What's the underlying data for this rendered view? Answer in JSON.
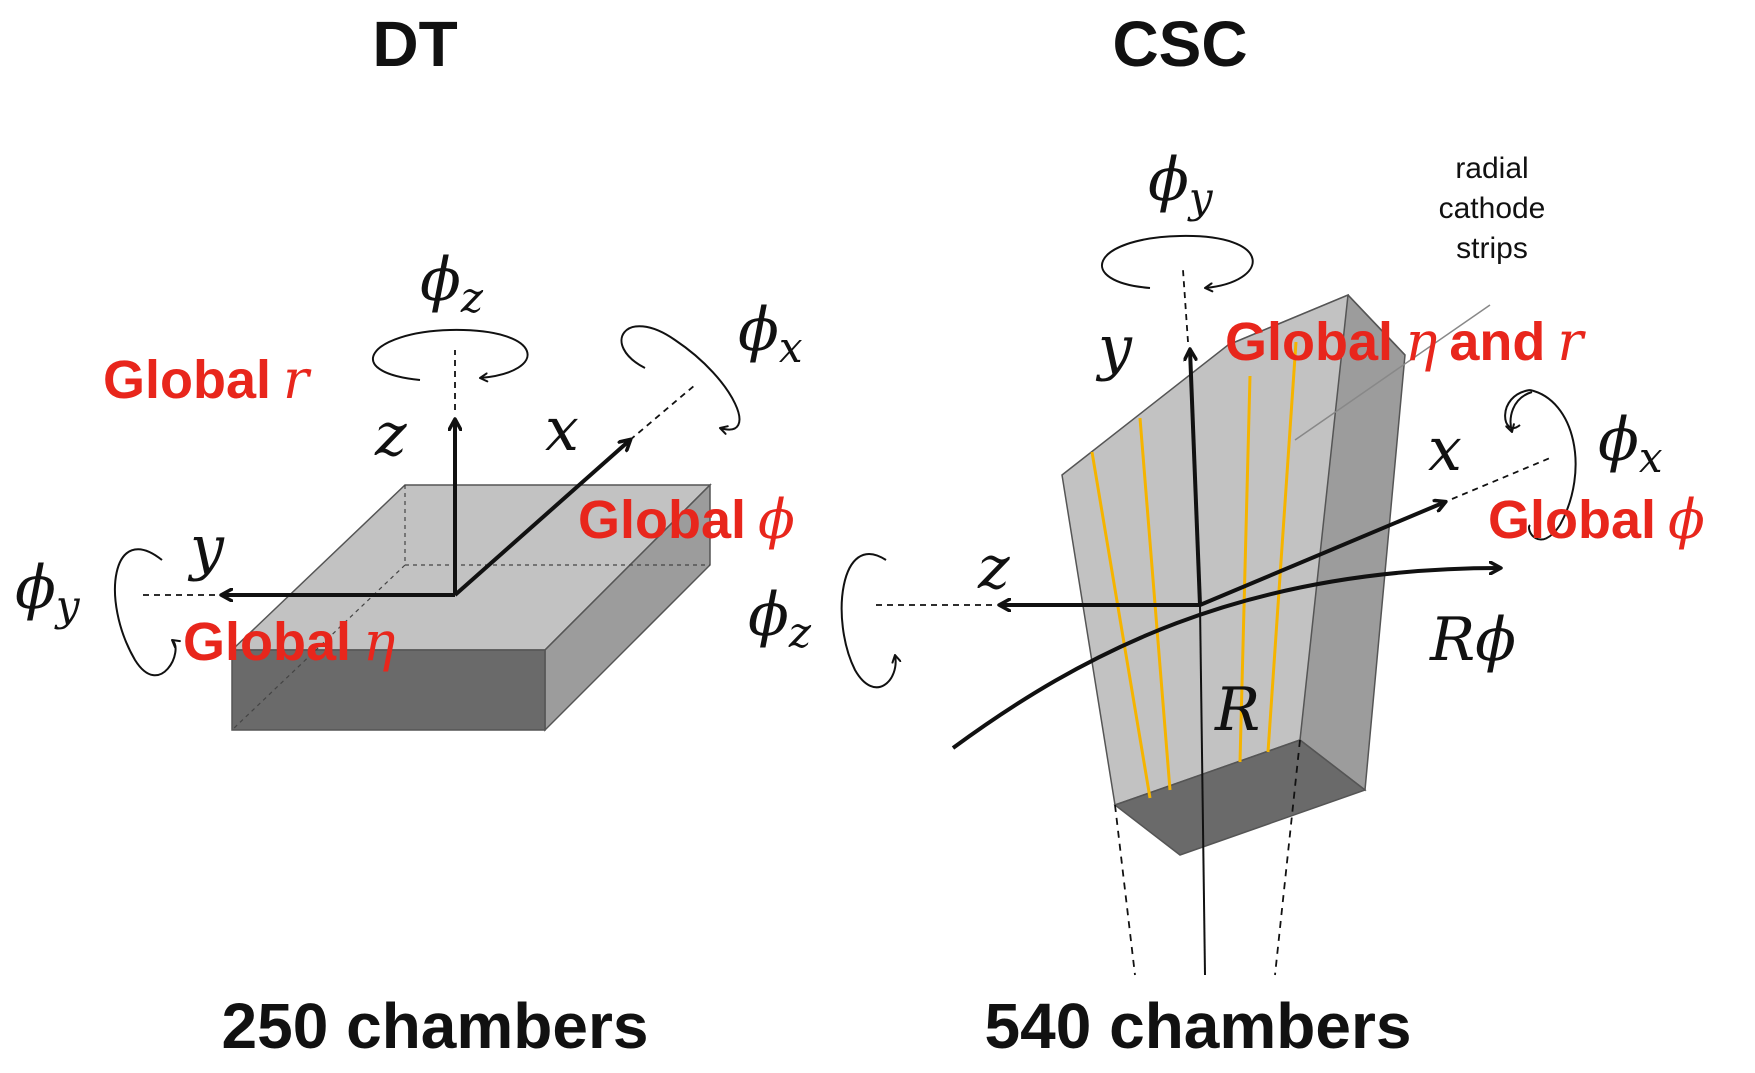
{
  "colors": {
    "label_red": "#e8261c",
    "face_light": "#c2c2c2",
    "face_mid": "#9c9c9c",
    "face_dark": "#6a6a6a",
    "strip": "#f5b400",
    "ink": "#111111"
  },
  "dt": {
    "title": "DT",
    "count": "250 chambers",
    "axes": {
      "x": "x",
      "y": "y",
      "z": "z"
    },
    "rotations": {
      "x": {
        "base": "ϕ",
        "sub": "x"
      },
      "y": {
        "base": "ϕ",
        "sub": "y"
      },
      "z": {
        "base": "ϕ",
        "sub": "z"
      }
    },
    "global_r": {
      "word": "Global",
      "sym": "r"
    },
    "global_phi": {
      "word": "Global",
      "sym": "ϕ"
    },
    "global_eta": {
      "word": "Global",
      "sym": "η"
    }
  },
  "csc": {
    "title": "CSC",
    "count": "540 chambers",
    "axes": {
      "x": "x",
      "y": "y",
      "z": "z"
    },
    "rotations": {
      "x": {
        "base": "ϕ",
        "sub": "x"
      },
      "y": {
        "base": "ϕ",
        "sub": "y"
      },
      "z": {
        "base": "ϕ",
        "sub": "z"
      }
    },
    "global_eta_r": {
      "word": "Global",
      "sym1": "η",
      "mid": "and",
      "sym2": "r"
    },
    "global_phi": {
      "word": "Global",
      "sym": "ϕ"
    },
    "r_label": "R",
    "rphi_label": "Rϕ",
    "strips_note": [
      "radial",
      "cathode",
      "strips"
    ]
  }
}
